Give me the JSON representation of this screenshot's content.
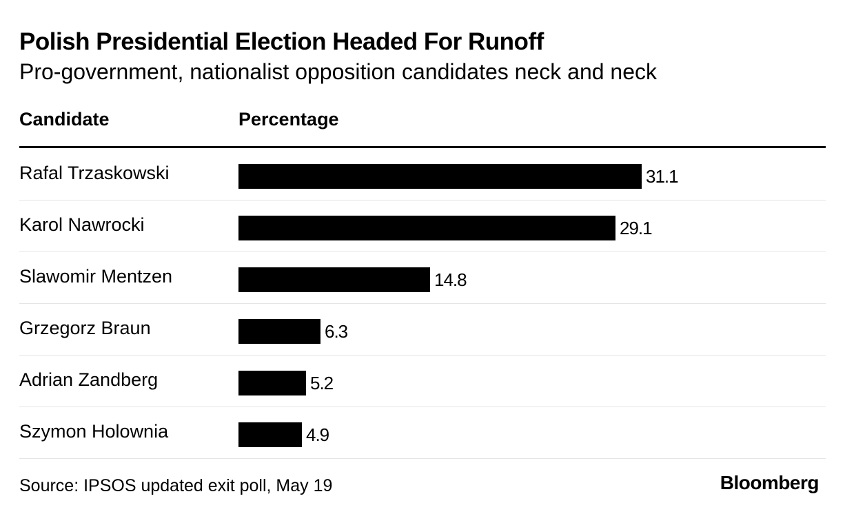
{
  "title": "Polish Presidential Election Headed For Runoff",
  "subtitle": "Pro-government, nationalist opposition candidates neck and neck",
  "columns": {
    "candidate": "Candidate",
    "percentage": "Percentage"
  },
  "chart_data": {
    "type": "bar",
    "orientation": "horizontal",
    "title": "Polish Presidential Election Headed For Runoff",
    "subtitle": "Pro-government, nationalist opposition candidates neck and neck",
    "xlabel": "Percentage",
    "ylabel": "Candidate",
    "categories": [
      "Rafal Trzaskowski",
      "Karol Nawrocki",
      "Slawomir Mentzen",
      "Grzegorz Braun",
      "Adrian Zandberg",
      "Szymon Holownia"
    ],
    "values": [
      31.1,
      29.1,
      14.8,
      6.3,
      5.2,
      4.9
    ],
    "value_labels": [
      "31.1",
      "29.1",
      "14.8",
      "6.3",
      "5.2",
      "4.9"
    ],
    "xlim": [
      0,
      31.1
    ],
    "bar_color": "#000000"
  },
  "source": "Source: IPSOS updated exit poll, May 19",
  "brand": "Bloomberg"
}
